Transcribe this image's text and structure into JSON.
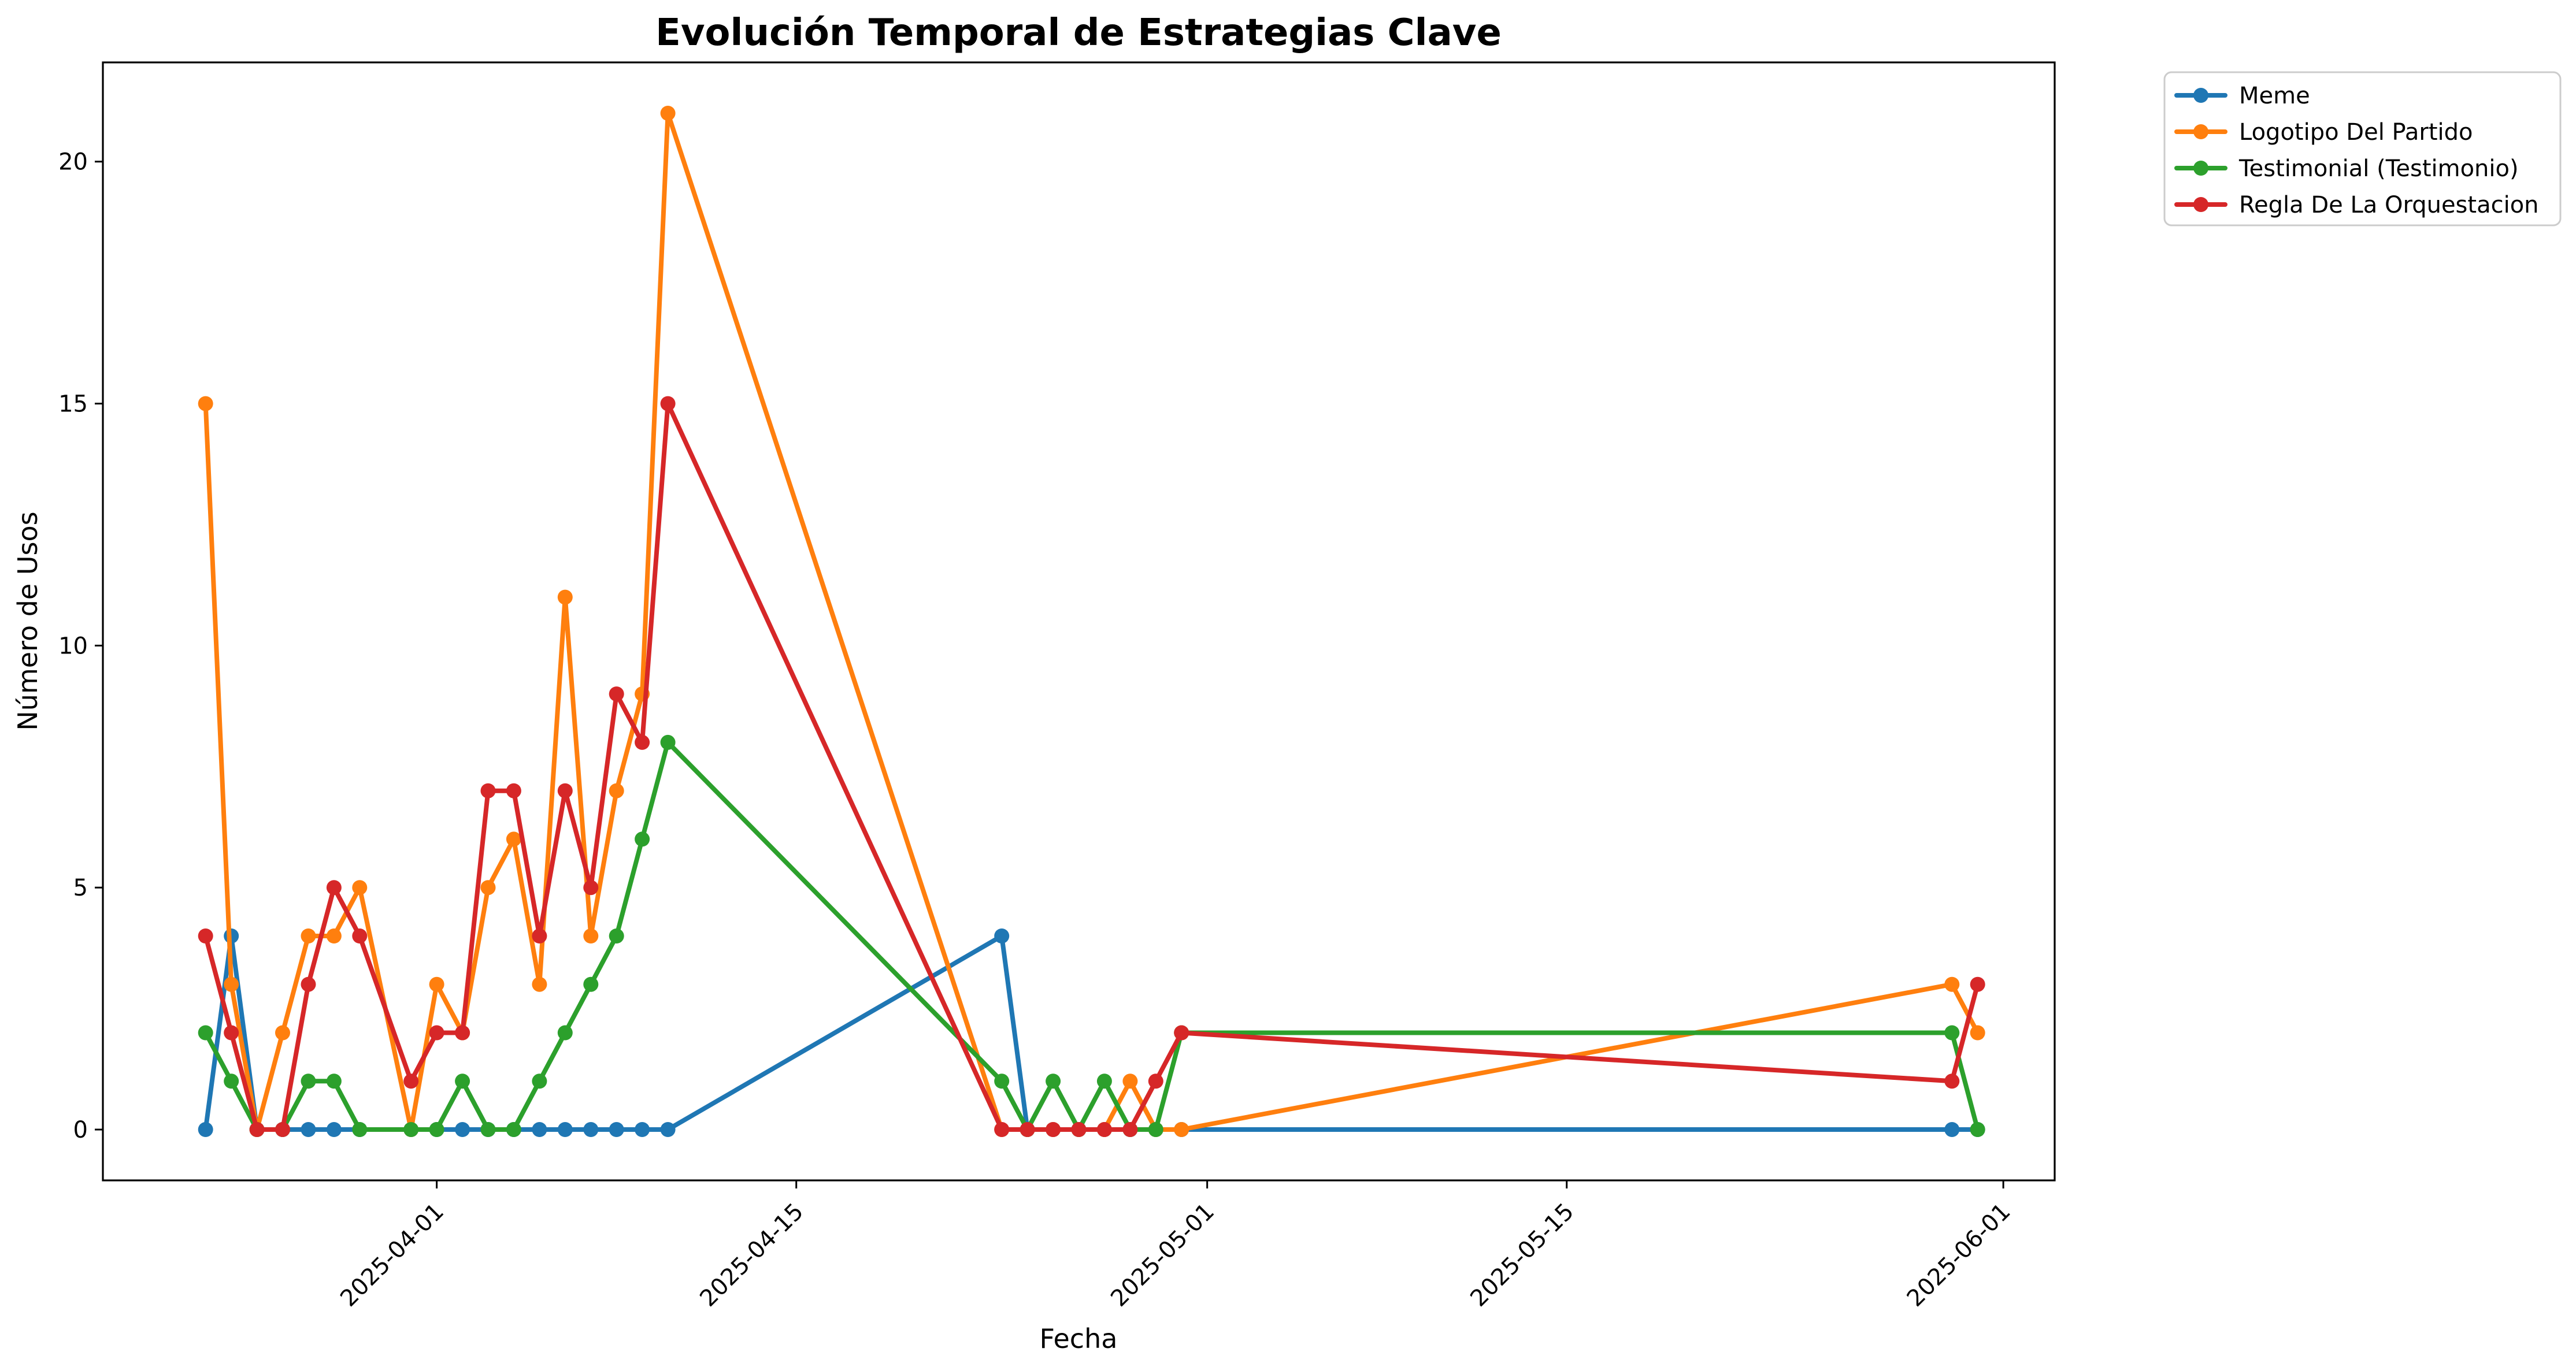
{
  "chart_data": {
    "type": "line",
    "title": "Evolución Temporal de Estrategias Clave",
    "xlabel": "Fecha",
    "ylabel": "Número de Usos",
    "x_axis_type": "date",
    "xlim": [
      "2025-03-19",
      "2025-06-03"
    ],
    "ylim": [
      -1.05,
      22.05
    ],
    "x_ticks": [
      "2025-04-01",
      "2025-04-15",
      "2025-05-01",
      "2025-05-15",
      "2025-06-01"
    ],
    "y_ticks": [
      0,
      5,
      10,
      15,
      20
    ],
    "grid": false,
    "legend_position": "outside-upper-right",
    "colors": {
      "Meme": "#1f77b4",
      "Logotipo Del Partido": "#ff7f0e",
      "Testimonial (Testimonio)": "#2ca02c",
      "Regla De La Orquestacion": "#d62728"
    },
    "dates": [
      "2025-03-23",
      "2025-03-24",
      "2025-03-25",
      "2025-03-26",
      "2025-03-27",
      "2025-03-28",
      "2025-03-29",
      "2025-03-31",
      "2025-04-01",
      "2025-04-02",
      "2025-04-03",
      "2025-04-04",
      "2025-04-05",
      "2025-04-06",
      "2025-04-07",
      "2025-04-08",
      "2025-04-09",
      "2025-04-10",
      "2025-04-23",
      "2025-04-24",
      "2025-04-25",
      "2025-04-26",
      "2025-04-27",
      "2025-04-28",
      "2025-04-29",
      "2025-04-30",
      "2025-05-30",
      "2025-05-31"
    ],
    "series": [
      {
        "name": "Meme",
        "values": [
          0,
          4,
          0,
          0,
          0,
          0,
          0,
          0,
          0,
          0,
          0,
          0,
          0,
          0,
          0,
          0,
          0,
          0,
          4,
          0,
          0,
          0,
          0,
          0,
          0,
          0,
          0,
          0
        ]
      },
      {
        "name": "Logotipo Del Partido",
        "values": [
          15,
          3,
          0,
          2,
          4,
          4,
          5,
          0,
          3,
          2,
          5,
          6,
          3,
          11,
          4,
          7,
          9,
          21,
          0,
          0,
          0,
          0,
          0,
          1,
          0,
          0,
          3,
          2
        ]
      },
      {
        "name": "Testimonial (Testimonio)",
        "values": [
          2,
          1,
          0,
          0,
          1,
          1,
          0,
          0,
          0,
          1,
          0,
          0,
          1,
          2,
          3,
          4,
          6,
          8,
          1,
          0,
          1,
          0,
          1,
          0,
          0,
          2,
          2,
          0
        ]
      },
      {
        "name": "Regla De La Orquestacion",
        "values": [
          4,
          2,
          0,
          0,
          3,
          5,
          4,
          1,
          2,
          2,
          7,
          7,
          4,
          7,
          5,
          9,
          8,
          15,
          0,
          0,
          0,
          0,
          0,
          0,
          1,
          2,
          1,
          3
        ]
      }
    ]
  }
}
